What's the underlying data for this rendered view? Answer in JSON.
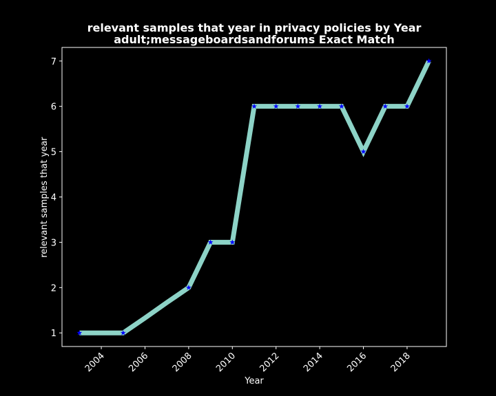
{
  "chart_data": {
    "type": "line",
    "title": "relevant samples that year in privacy policies by Year",
    "subtitle": "adult;messageboardsandforums Exact Match",
    "xlabel": "Year",
    "ylabel": "relevant samples that year",
    "x": [
      2003,
      2004,
      2005,
      2006,
      2007,
      2008,
      2009,
      2010,
      2011,
      2012,
      2013,
      2014,
      2015,
      2016,
      2017,
      2018,
      2019
    ],
    "series": [
      {
        "values": [
          1,
          1,
          1,
          1.33,
          1.67,
          2,
          3,
          3,
          6,
          6,
          6,
          6,
          6,
          5,
          6,
          6,
          7
        ],
        "marker_x": [
          2003,
          2005,
          2008,
          2009,
          2010,
          2011,
          2012,
          2013,
          2014,
          2015,
          2016,
          2017,
          2018,
          2019
        ],
        "marker_y": [
          1,
          1,
          2,
          3,
          3,
          6,
          6,
          6,
          6,
          6,
          5,
          6,
          6,
          7
        ],
        "line_color": "#8dd3c7",
        "marker_color": "#0000ff",
        "marker": "star"
      }
    ],
    "xticks": [
      "2004",
      "2006",
      "2008",
      "2010",
      "2012",
      "2014",
      "2016",
      "2018"
    ],
    "yticks": [
      "1",
      "2",
      "3",
      "4",
      "5",
      "6",
      "7"
    ],
    "xlim": [
      2002.2,
      2019.8
    ],
    "ylim": [
      0.7,
      7.3
    ],
    "grid": false,
    "background": "#000000",
    "axes_color": "#ffffff"
  }
}
